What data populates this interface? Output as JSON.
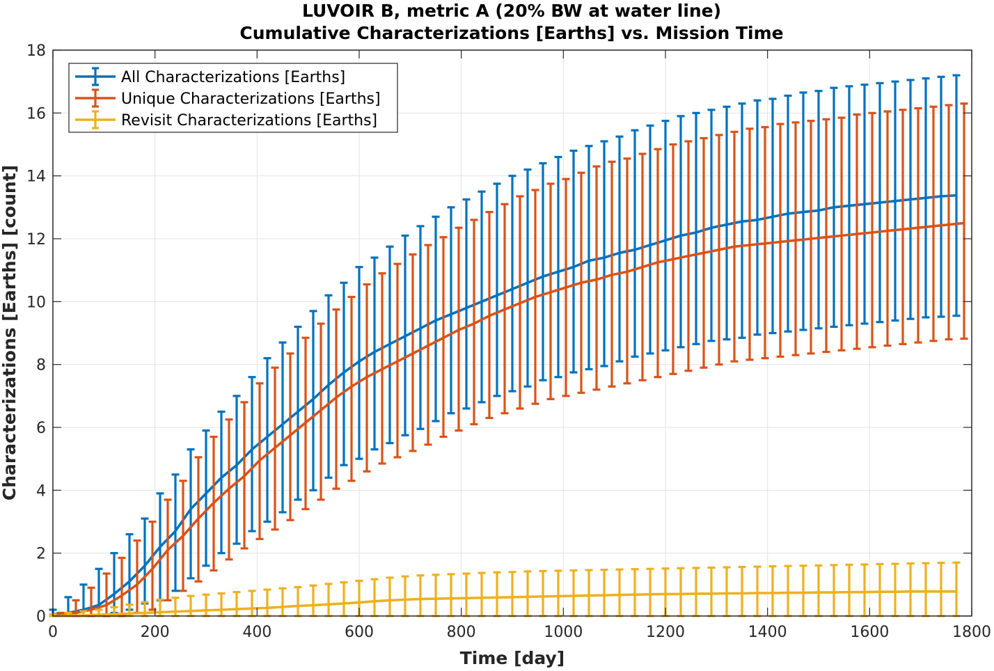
{
  "chart_data": {
    "type": "line",
    "title": "LUVOIR B, metric A (20% BW at water line)",
    "subtitle": "Cumulative Characterizations [Earths] vs. Mission Time",
    "xlabel": "Time [day]",
    "ylabel": "Characterizations [Earths] [count]",
    "xlim": [
      0,
      1800
    ],
    "ylim": [
      0,
      18
    ],
    "xticks": [
      "0",
      "200",
      "400",
      "600",
      "800",
      "1000",
      "1200",
      "1400",
      "1600",
      "1800"
    ],
    "yticks": [
      "0",
      "2",
      "4",
      "6",
      "8",
      "10",
      "12",
      "14",
      "16",
      "18"
    ],
    "grid": true,
    "legend_position": "top-left",
    "series": [
      {
        "name": "All Characterizations [Earths]",
        "color": "#0072BD",
        "x": [
          0,
          30,
          60,
          90,
          120,
          150,
          180,
          210,
          240,
          270,
          300,
          330,
          360,
          390,
          420,
          450,
          480,
          510,
          540,
          570,
          600,
          630,
          660,
          690,
          720,
          750,
          780,
          810,
          840,
          870,
          900,
          930,
          960,
          990,
          1020,
          1050,
          1080,
          1110,
          1140,
          1170,
          1200,
          1230,
          1260,
          1290,
          1320,
          1350,
          1380,
          1410,
          1440,
          1470,
          1500,
          1530,
          1560,
          1590,
          1620,
          1650,
          1680,
          1710,
          1740,
          1770
        ],
        "mean": [
          0.05,
          0.1,
          0.2,
          0.35,
          0.7,
          1.1,
          1.6,
          2.2,
          2.7,
          3.4,
          3.9,
          4.4,
          4.8,
          5.3,
          5.7,
          6.1,
          6.5,
          6.9,
          7.35,
          7.75,
          8.1,
          8.4,
          8.65,
          8.9,
          9.15,
          9.4,
          9.6,
          9.8,
          10.0,
          10.2,
          10.4,
          10.6,
          10.8,
          10.95,
          11.1,
          11.3,
          11.4,
          11.55,
          11.65,
          11.8,
          11.95,
          12.1,
          12.2,
          12.35,
          12.45,
          12.55,
          12.6,
          12.7,
          12.8,
          12.85,
          12.9,
          13.0,
          13.05,
          13.1,
          13.15,
          13.2,
          13.25,
          13.3,
          13.35,
          13.38
        ],
        "upper": [
          0.2,
          0.6,
          1.0,
          1.5,
          2.0,
          2.6,
          3.1,
          3.9,
          4.5,
          5.3,
          5.9,
          6.5,
          7.0,
          7.6,
          8.2,
          8.7,
          9.2,
          9.7,
          10.2,
          10.6,
          11.1,
          11.4,
          11.75,
          12.1,
          12.4,
          12.7,
          13.0,
          13.25,
          13.5,
          13.75,
          14.0,
          14.2,
          14.4,
          14.6,
          14.8,
          14.95,
          15.1,
          15.25,
          15.45,
          15.6,
          15.75,
          15.9,
          16.0,
          16.1,
          16.2,
          16.3,
          16.4,
          16.45,
          16.55,
          16.65,
          16.7,
          16.8,
          16.85,
          16.9,
          16.95,
          17.0,
          17.05,
          17.1,
          17.15,
          17.2
        ],
        "lower": [
          0.0,
          0.0,
          0.0,
          0.0,
          0.1,
          0.2,
          0.4,
          0.5,
          0.8,
          1.2,
          1.6,
          2.0,
          2.3,
          2.7,
          3.0,
          3.3,
          3.7,
          4.0,
          4.4,
          4.8,
          5.0,
          5.3,
          5.5,
          5.75,
          5.95,
          6.2,
          6.45,
          6.6,
          6.8,
          7.0,
          7.15,
          7.3,
          7.5,
          7.6,
          7.75,
          7.85,
          7.95,
          8.1,
          8.25,
          8.35,
          8.45,
          8.55,
          8.65,
          8.75,
          8.8,
          8.85,
          8.95,
          9.0,
          9.05,
          9.1,
          9.15,
          9.2,
          9.25,
          9.3,
          9.35,
          9.4,
          9.45,
          9.5,
          9.52,
          9.55
        ]
      },
      {
        "name": "Unique Characterizations [Earths]",
        "color": "#D95319",
        "x": [
          15,
          45,
          75,
          105,
          135,
          165,
          195,
          225,
          255,
          285,
          315,
          345,
          375,
          405,
          435,
          465,
          495,
          525,
          555,
          585,
          615,
          645,
          675,
          705,
          735,
          765,
          795,
          825,
          855,
          885,
          915,
          945,
          975,
          1005,
          1035,
          1065,
          1095,
          1125,
          1155,
          1185,
          1215,
          1245,
          1275,
          1305,
          1335,
          1365,
          1395,
          1425,
          1455,
          1485,
          1515,
          1545,
          1575,
          1605,
          1635,
          1665,
          1695,
          1725,
          1755,
          1785
        ],
        "mean": [
          0.05,
          0.1,
          0.2,
          0.35,
          0.65,
          1.0,
          1.5,
          2.1,
          2.55,
          3.1,
          3.6,
          4.05,
          4.45,
          4.95,
          5.35,
          5.75,
          6.15,
          6.55,
          6.95,
          7.3,
          7.6,
          7.85,
          8.1,
          8.35,
          8.6,
          8.85,
          9.1,
          9.3,
          9.55,
          9.75,
          9.95,
          10.15,
          10.3,
          10.45,
          10.6,
          10.7,
          10.85,
          10.95,
          11.1,
          11.25,
          11.35,
          11.45,
          11.55,
          11.65,
          11.75,
          11.8,
          11.85,
          11.9,
          11.95,
          12.0,
          12.05,
          12.1,
          12.15,
          12.2,
          12.25,
          12.3,
          12.35,
          12.4,
          12.45,
          12.5
        ],
        "upper": [
          0.1,
          0.5,
          0.9,
          1.35,
          1.85,
          2.4,
          3.0,
          3.7,
          4.3,
          5.05,
          5.7,
          6.25,
          6.8,
          7.4,
          7.9,
          8.35,
          8.85,
          9.3,
          9.75,
          10.15,
          10.55,
          10.9,
          11.2,
          11.5,
          11.8,
          12.05,
          12.35,
          12.6,
          12.85,
          13.1,
          13.35,
          13.55,
          13.75,
          13.9,
          14.1,
          14.3,
          14.45,
          14.55,
          14.7,
          14.85,
          15.0,
          15.1,
          15.2,
          15.3,
          15.4,
          15.5,
          15.55,
          15.65,
          15.7,
          15.75,
          15.8,
          15.85,
          15.95,
          16.0,
          16.05,
          16.1,
          16.15,
          16.2,
          16.25,
          16.3
        ],
        "lower": [
          0.0,
          0.0,
          0.0,
          0.0,
          0.0,
          0.1,
          0.2,
          0.5,
          0.8,
          1.1,
          1.45,
          1.8,
          2.15,
          2.45,
          2.75,
          3.05,
          3.4,
          3.7,
          4.05,
          4.3,
          4.6,
          4.85,
          5.05,
          5.25,
          5.45,
          5.7,
          5.9,
          6.1,
          6.3,
          6.45,
          6.6,
          6.75,
          6.9,
          7.0,
          7.1,
          7.2,
          7.3,
          7.4,
          7.5,
          7.6,
          7.7,
          7.8,
          7.9,
          8.0,
          8.1,
          8.15,
          8.2,
          8.25,
          8.3,
          8.35,
          8.4,
          8.45,
          8.5,
          8.55,
          8.6,
          8.65,
          8.7,
          8.75,
          8.8,
          8.82
        ]
      },
      {
        "name": "Revisit Characterizations [Earths]",
        "color": "#EDB120",
        "x": [
          0,
          30,
          60,
          90,
          120,
          150,
          180,
          210,
          240,
          270,
          300,
          330,
          360,
          390,
          420,
          450,
          480,
          510,
          540,
          570,
          600,
          630,
          660,
          690,
          720,
          750,
          780,
          810,
          840,
          870,
          900,
          930,
          960,
          990,
          1020,
          1050,
          1080,
          1110,
          1140,
          1170,
          1200,
          1230,
          1260,
          1290,
          1320,
          1350,
          1380,
          1410,
          1440,
          1470,
          1500,
          1530,
          1560,
          1590,
          1620,
          1650,
          1680,
          1710,
          1740,
          1770
        ],
        "mean": [
          0.0,
          0.01,
          0.02,
          0.04,
          0.06,
          0.08,
          0.1,
          0.12,
          0.14,
          0.16,
          0.18,
          0.2,
          0.22,
          0.24,
          0.26,
          0.29,
          0.32,
          0.34,
          0.37,
          0.4,
          0.43,
          0.47,
          0.5,
          0.52,
          0.54,
          0.55,
          0.56,
          0.57,
          0.58,
          0.59,
          0.6,
          0.61,
          0.62,
          0.63,
          0.64,
          0.65,
          0.66,
          0.67,
          0.68,
          0.69,
          0.7,
          0.7,
          0.71,
          0.71,
          0.72,
          0.72,
          0.73,
          0.73,
          0.74,
          0.74,
          0.75,
          0.75,
          0.76,
          0.76,
          0.77,
          0.77,
          0.78,
          0.78,
          0.78,
          0.78
        ],
        "upper": [
          0.05,
          0.1,
          0.15,
          0.2,
          0.28,
          0.36,
          0.44,
          0.52,
          0.58,
          0.64,
          0.68,
          0.72,
          0.76,
          0.8,
          0.84,
          0.88,
          0.92,
          0.97,
          1.02,
          1.07,
          1.12,
          1.17,
          1.22,
          1.26,
          1.29,
          1.31,
          1.33,
          1.35,
          1.37,
          1.39,
          1.4,
          1.42,
          1.43,
          1.44,
          1.45,
          1.46,
          1.47,
          1.48,
          1.49,
          1.5,
          1.51,
          1.52,
          1.53,
          1.54,
          1.55,
          1.56,
          1.57,
          1.58,
          1.59,
          1.6,
          1.61,
          1.62,
          1.63,
          1.64,
          1.65,
          1.66,
          1.67,
          1.68,
          1.69,
          1.7
        ],
        "lower": [
          0.0,
          0.0,
          0.0,
          0.0,
          0.0,
          0.0,
          0.0,
          0.0,
          0.0,
          0.0,
          0.0,
          0.0,
          0.0,
          0.0,
          0.0,
          0.0,
          0.0,
          0.0,
          0.0,
          0.0,
          0.0,
          0.0,
          0.0,
          0.0,
          0.0,
          0.0,
          0.0,
          0.0,
          0.0,
          0.0,
          0.0,
          0.0,
          0.0,
          0.0,
          0.0,
          0.0,
          0.0,
          0.0,
          0.0,
          0.0,
          0.0,
          0.0,
          0.0,
          0.0,
          0.0,
          0.0,
          0.0,
          0.0,
          0.0,
          0.0,
          0.0,
          0.0,
          0.0,
          0.0,
          0.0,
          0.0,
          0.0,
          0.0,
          0.0,
          0.0
        ]
      }
    ]
  }
}
